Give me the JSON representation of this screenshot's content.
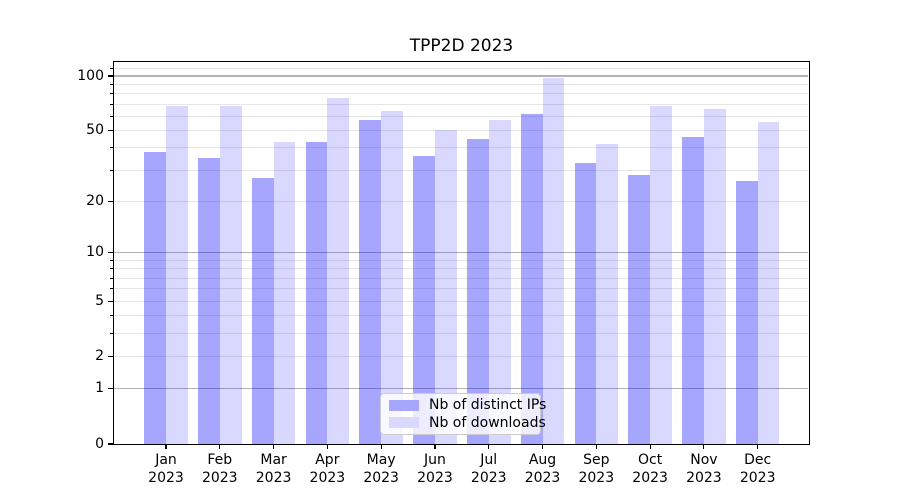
{
  "chart_data": {
    "type": "bar",
    "title": "TPP2D 2023",
    "scale": "log1p (tick position proportional to log10(1+y))",
    "categories": [
      "Jan",
      "Feb",
      "Mar",
      "Apr",
      "May",
      "Jun",
      "Jul",
      "Aug",
      "Sep",
      "Oct",
      "Nov",
      "Dec"
    ],
    "year": "2023",
    "series": [
      {
        "name": "Nb of distinct IPs",
        "color": "#a6a6ff",
        "fill": "rgba(0,0,255,0.35)",
        "values": [
          38,
          35,
          27,
          43,
          57,
          36,
          45,
          62,
          33,
          28,
          46,
          26
        ]
      },
      {
        "name": "Nb of downloads",
        "color": "#d9d9ff",
        "fill": "rgba(0,0,255,0.15)",
        "values": [
          68,
          68,
          43,
          76,
          64,
          50,
          57,
          98,
          42,
          68,
          66,
          56
        ]
      }
    ],
    "yticks": [
      0,
      1,
      2,
      5,
      10,
      20,
      50,
      100
    ],
    "ytick_labels": [
      "0",
      "1",
      "2",
      "5",
      "10",
      "20",
      "50",
      "100"
    ],
    "grid_major_values": [
      1,
      10,
      100
    ],
    "grid_minor_values": [
      2,
      3,
      4,
      5,
      6,
      7,
      8,
      9,
      20,
      30,
      40,
      50,
      60,
      70,
      80,
      90,
      110
    ],
    "ylim": [
      0,
      121
    ],
    "xlabel": "",
    "ylabel": "",
    "grid": "on",
    "legend_position": "lower center"
  },
  "colors": {
    "bar_distinct_ips": "#a6a6ff",
    "bar_downloads": "#d9d9ff",
    "grid_major": "#b2b2b2",
    "grid_minor": "#e6e6e6",
    "axis": "#000000",
    "legend_border": "#cccccc"
  }
}
